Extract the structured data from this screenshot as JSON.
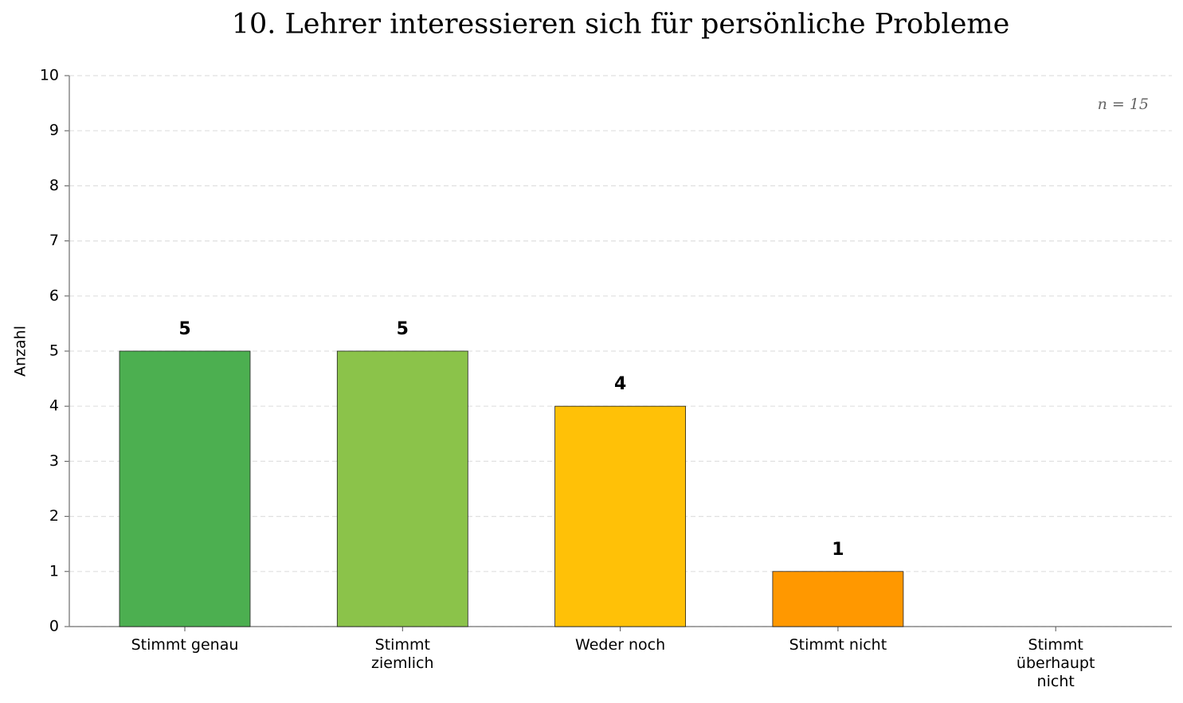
{
  "chart_data": {
    "type": "bar",
    "title": "10. Lehrer interessieren sich für persönliche Probleme",
    "y_label": "Anzahl",
    "annotation": "n = 15",
    "categories": [
      "Stimmt genau",
      "Stimmt\nziemlich",
      "Weder noch",
      "Stimmt nicht",
      "Stimmt\nüberhaupt\nnicht"
    ],
    "values": [
      5,
      5,
      4,
      1,
      0
    ],
    "colors": [
      "#4caf50",
      "#8bc34a",
      "#ffc107",
      "#ff9800",
      "#f44336"
    ],
    "ylim": [
      0,
      10
    ],
    "yticks": [
      0,
      1,
      2,
      3,
      4,
      5,
      6,
      7,
      8,
      9,
      10
    ],
    "grid": true
  }
}
